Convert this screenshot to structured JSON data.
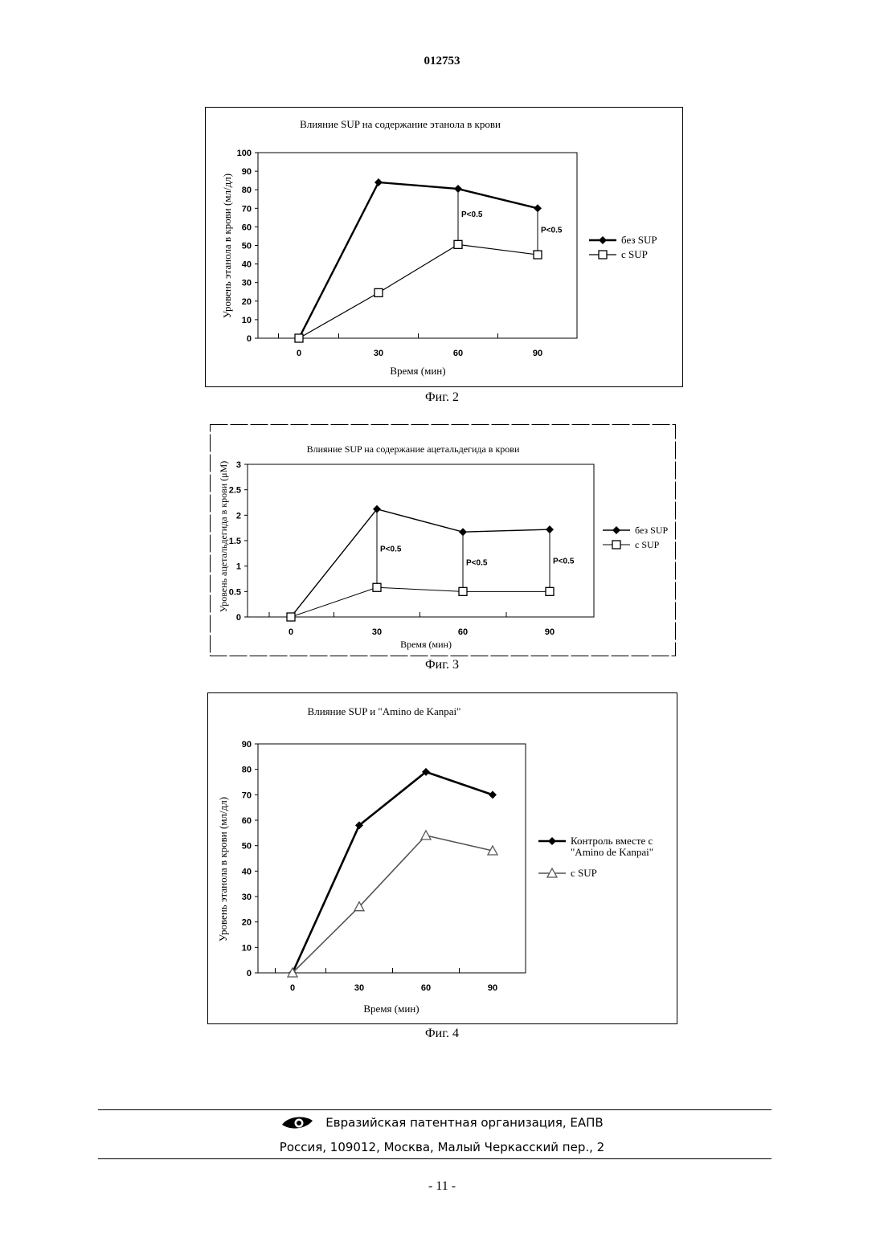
{
  "header": {
    "doc_number": "012753"
  },
  "figures": [
    {
      "caption": "Фиг. 2",
      "chart_data": {
        "type": "line",
        "title": "Влияние SUP на содержание этанола в крови",
        "xlabel": "Время (мин)",
        "ylabel": "Уровень этанола в крови (мл/дл)",
        "categories": [
          "0",
          "30",
          "60",
          "90"
        ],
        "ylim": [
          0,
          100
        ],
        "yticks": [
          "0",
          "10",
          "20",
          "30",
          "40",
          "50",
          "60",
          "70",
          "80",
          "90",
          "100"
        ],
        "legend_position": "right",
        "series": [
          {
            "name": "без SUP",
            "values": [
              0,
              84,
              80.5,
              70
            ],
            "marker": "diamond",
            "color": "#000000"
          },
          {
            "name": "с SUP",
            "values": [
              0,
              24.5,
              50.5,
              45
            ],
            "marker": "square",
            "color": "#000000"
          }
        ],
        "annotations": [
          {
            "text": "P<0.5",
            "category_index": 2
          },
          {
            "text": "P<0.5",
            "category_index": 3
          }
        ]
      }
    },
    {
      "caption": "Фиг. 3",
      "chart_data": {
        "type": "line",
        "title": "Влияние SUP на содержание ацетальдегида в крови",
        "xlabel": "Время (мин)",
        "ylabel": "Уровень ацетальдегида в крови  (μM)",
        "categories": [
          "0",
          "30",
          "60",
          "90"
        ],
        "ylim": [
          0,
          3
        ],
        "yticks": [
          "0",
          "0.5",
          "1",
          "1.5",
          "2",
          "2.5",
          "3"
        ],
        "legend_position": "right",
        "series": [
          {
            "name": "без SUP",
            "values": [
              0,
              2.12,
              1.67,
              1.72
            ],
            "marker": "diamond",
            "color": "#000000"
          },
          {
            "name": "с SUP",
            "values": [
              0,
              0.58,
              0.5,
              0.5
            ],
            "marker": "square",
            "color": "#000000"
          }
        ],
        "annotations": [
          {
            "text": "P<0.5",
            "category_index": 1
          },
          {
            "text": "P<0.5",
            "category_index": 2
          },
          {
            "text": "P<0.5",
            "category_index": 3
          }
        ]
      }
    },
    {
      "caption": "Фиг. 4",
      "chart_data": {
        "type": "line",
        "title": "Влияние SUP и \"Amino de Kanpai\"",
        "xlabel": "Время (мин)",
        "ylabel": "Уровень этанола в крови (мл/дл)",
        "categories": [
          "0",
          "30",
          "60",
          "90"
        ],
        "ylim": [
          0,
          90
        ],
        "yticks": [
          "0",
          "10",
          "20",
          "30",
          "40",
          "50",
          "60",
          "70",
          "80",
          "90"
        ],
        "legend_position": "right",
        "series": [
          {
            "name_lines": [
              "Контроль вместе с",
              "\"Amino de Kanpai\""
            ],
            "values": [
              0,
              58,
              79,
              70
            ],
            "marker": "diamond",
            "color": "#000000"
          },
          {
            "name": "с SUP",
            "values": [
              0,
              26,
              54,
              48
            ],
            "marker": "triangle",
            "color": "#555555"
          }
        ]
      }
    }
  ],
  "footer": {
    "org": "Евразийская патентная организация, ЕАПВ",
    "address": "Россия, 109012, Москва, Малый Черкасский пер., 2",
    "logo_icon": "eye-logo-icon"
  },
  "page_number": "- 11 -"
}
